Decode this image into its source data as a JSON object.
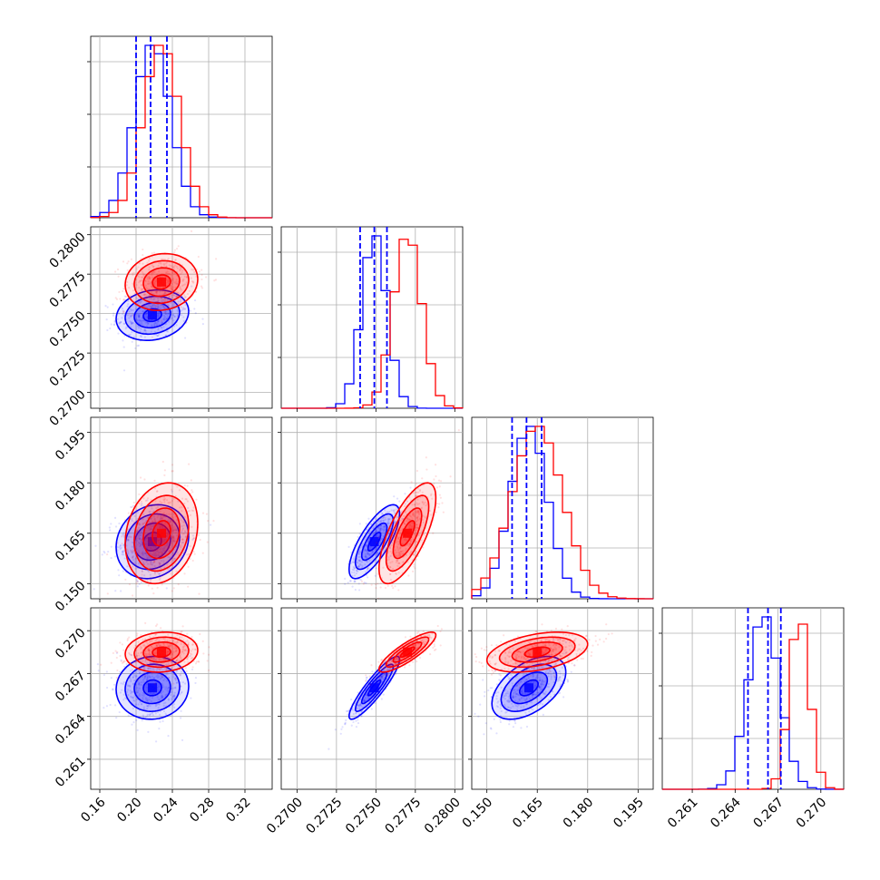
{
  "chart_data": {
    "type": "corner-plot",
    "title": "",
    "colors": {
      "blue": "#0000ff",
      "red": "#ff0000"
    },
    "parameters": [
      {
        "range": [
          0.15,
          0.35
        ],
        "ticks": [
          "0.16",
          "0.20",
          "0.24",
          "0.28",
          "0.32"
        ]
      },
      {
        "range": [
          0.269,
          0.2805
        ],
        "ticks": [
          "0.2700",
          "0.2725",
          "0.2750",
          "0.2775",
          "0.2800"
        ]
      },
      {
        "range": [
          0.1455,
          0.1995
        ],
        "ticks": [
          "0.150",
          "0.165",
          "0.180",
          "0.195"
        ]
      },
      {
        "range": [
          0.2589,
          0.2716
        ],
        "ticks": [
          "0.261",
          "0.264",
          "0.267",
          "0.270"
        ]
      }
    ],
    "series": [
      {
        "color": "blue",
        "params": [
          {
            "mean": 0.218,
            "sd": 0.02,
            "q16": 0.2,
            "q50": 0.216,
            "q84": 0.234
          },
          {
            "mean": 0.2749,
            "sd": 0.0008,
            "q16": 0.274,
            "q50": 0.2749,
            "q84": 0.2757
          },
          {
            "mean": 0.1625,
            "sd": 0.0055,
            "q16": 0.1575,
            "q50": 0.1618,
            "q84": 0.1663
          },
          {
            "mean": 0.266,
            "sd": 0.0011,
            "q16": 0.2649,
            "q50": 0.2663,
            "q84": 0.2672
          }
        ]
      },
      {
        "color": "red",
        "params": [
          {
            "mean": 0.228,
            "sd": 0.02
          },
          {
            "mean": 0.277,
            "sd": 0.0009
          },
          {
            "mean": 0.165,
            "sd": 0.0075
          },
          {
            "mean": 0.2685,
            "sd": 0.0007
          }
        ]
      }
    ],
    "grid": true,
    "legend": "none"
  }
}
